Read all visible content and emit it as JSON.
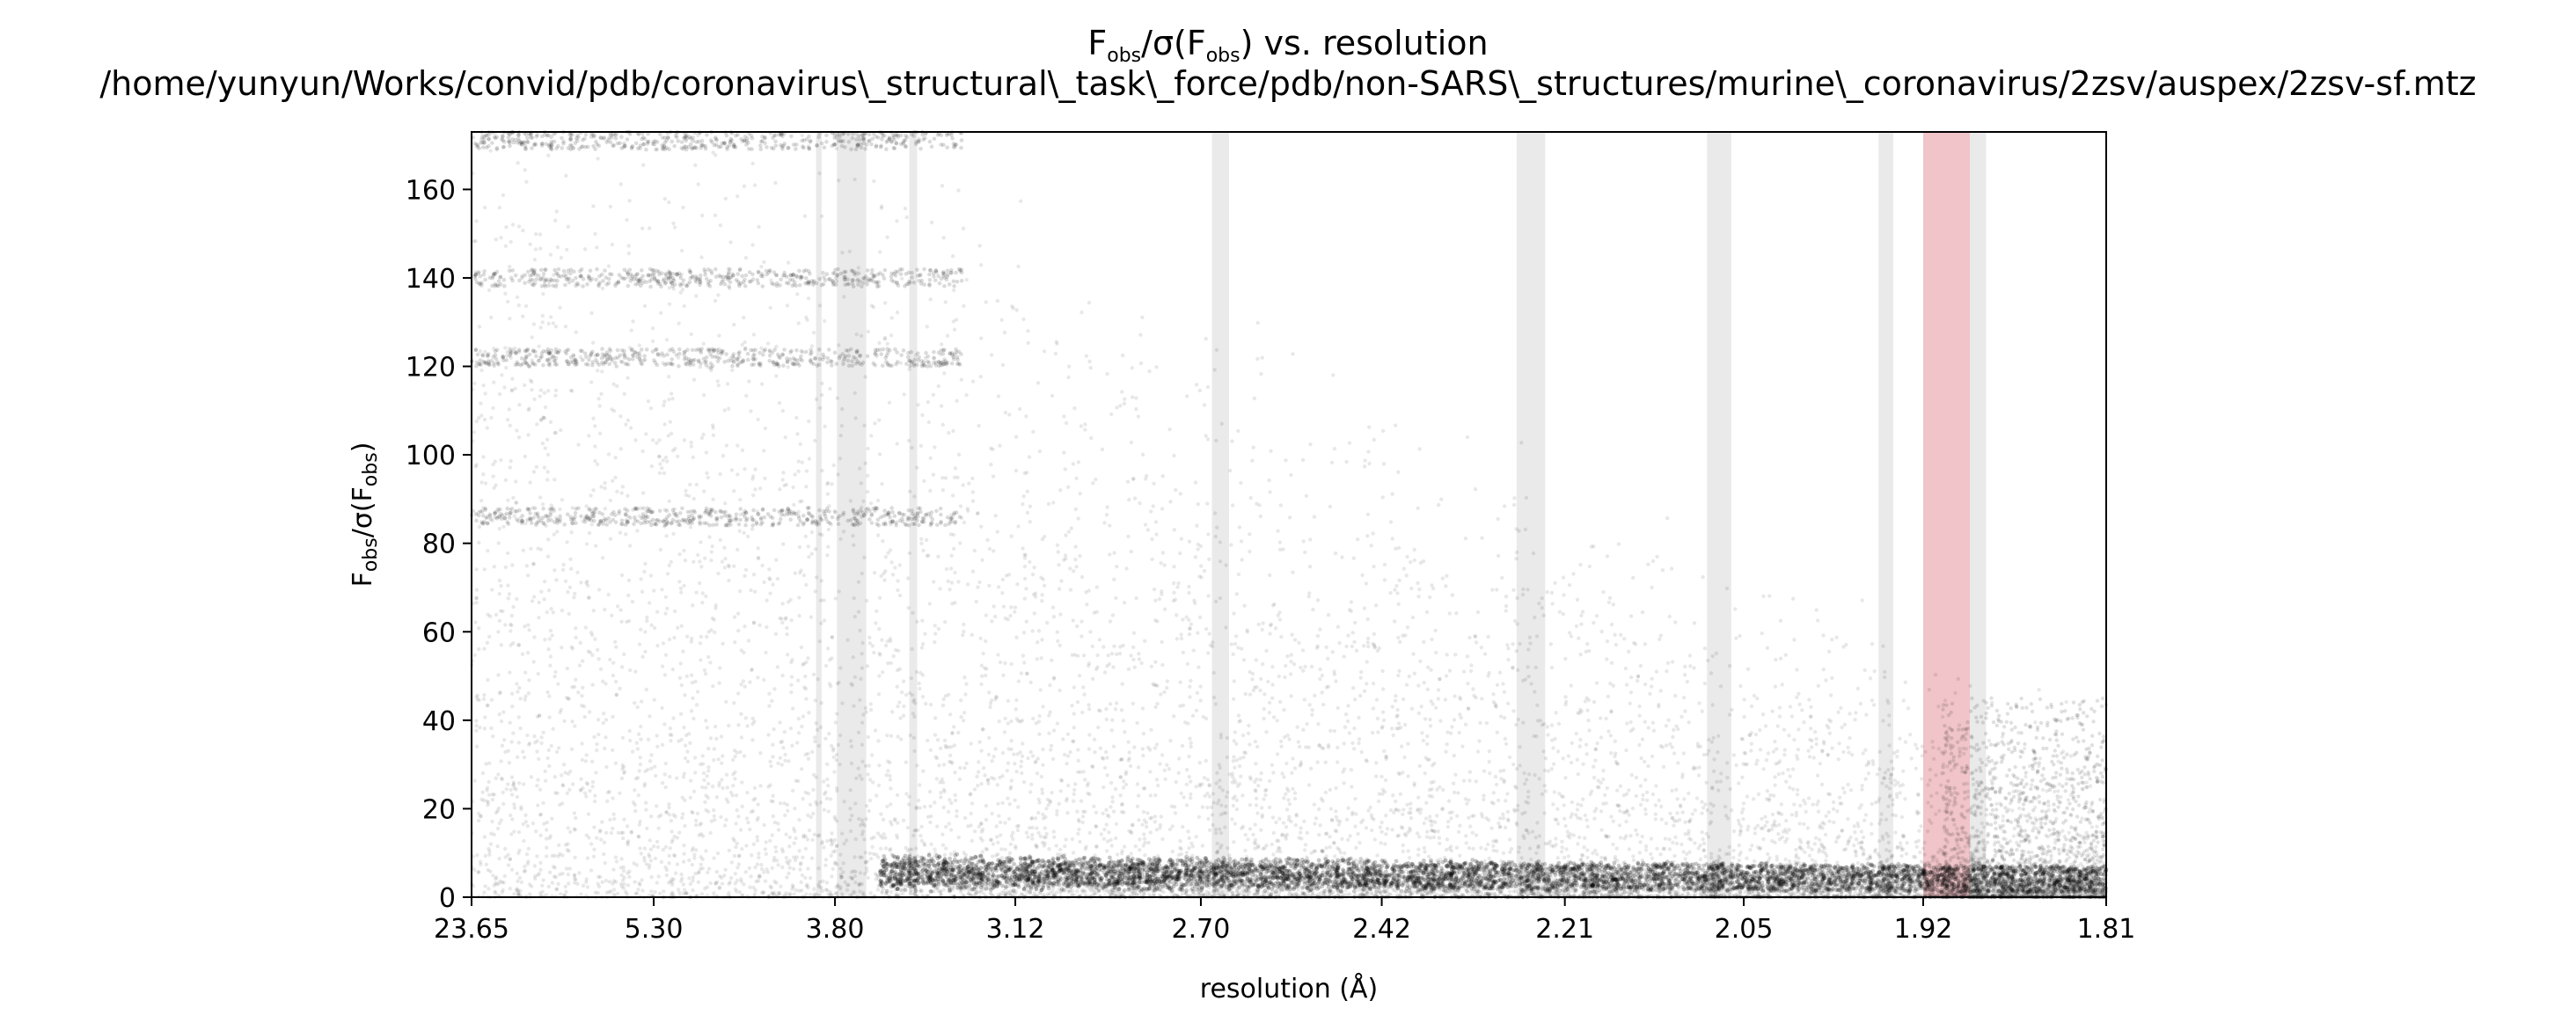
{
  "chart_data": {
    "type": "scatter",
    "title": {
      "f_main": "F",
      "sub_obs": "obs",
      "sigma_open": "/σ(F",
      "sub_obs2": "obs",
      "rest": ") vs. resolution",
      "path": "/home/yunyun/Works/convid/pdb/coronavirus\\_structural\\_task\\_force/pdb/non-SARS\\_structures/murine\\_coronavirus/2zsv/auspex/2zsv-sf.mtz"
    },
    "xlabel": "resolution (Å)",
    "ylabel": {
      "f_main": "F",
      "sub_obs": "obs",
      "sigma_open": "/σ(F",
      "sub_obs2": "obs",
      "close": ")"
    },
    "x_scale": "reciprocal-square",
    "x_ticks": [
      "23.65",
      "5.30",
      "3.80",
      "3.12",
      "2.70",
      "2.42",
      "2.21",
      "2.05",
      "1.92",
      "1.81"
    ],
    "xlim": [
      23.65,
      1.81
    ],
    "ylim": [
      0,
      173
    ],
    "y_ticks": [
      "0",
      "20",
      "40",
      "60",
      "80",
      "100",
      "120",
      "140",
      "160"
    ],
    "ice_ring_bands": [
      {
        "from": 3.9,
        "to": 3.87,
        "color": "#d9d9d9"
      },
      {
        "from": 3.79,
        "to": 3.65,
        "color": "#d9d9d9"
      },
      {
        "from": 3.47,
        "to": 3.44,
        "color": "#d9d9d9"
      },
      {
        "from": 2.68,
        "to": 2.65,
        "color": "#d9d9d9"
      },
      {
        "from": 2.26,
        "to": 2.23,
        "color": "#d9d9d9"
      },
      {
        "from": 2.08,
        "to": 2.06,
        "color": "#d9d9d9"
      },
      {
        "from": 1.95,
        "to": 1.94,
        "color": "#d9d9d9"
      },
      {
        "from": 1.92,
        "to": 1.89,
        "color": "#e8a5aa"
      },
      {
        "from": 1.89,
        "to": 1.88,
        "color": "#d9d9d9"
      }
    ],
    "bands": [
      {
        "x1": 0.207,
        "x2": 0.224,
        "color": "#d9d9d9"
      },
      {
        "x1": 0.23,
        "x2": 0.254,
        "color": "#d9d9d9"
      },
      {
        "x1": 0.263,
        "x2": 0.282,
        "color": "#d9d9d9"
      },
      {
        "x1": 0.447,
        "x2": 0.465,
        "color": "#d9d9d9"
      },
      {
        "x1": 0.616,
        "x2": 0.664,
        "color": "#d9d9d9"
      },
      {
        "x1": 0.739,
        "x2": 0.777,
        "color": "#d9d9d9"
      },
      {
        "x1": 0.849,
        "x2": 0.863,
        "color": "#d9d9d9"
      },
      {
        "x1": 0.867,
        "x2": 0.902,
        "color": "#e8a5aa"
      },
      {
        "x1": 0.908,
        "x2": 0.935,
        "color": "#d9d9d9"
      }
    ],
    "point_color": "#000000"
  }
}
